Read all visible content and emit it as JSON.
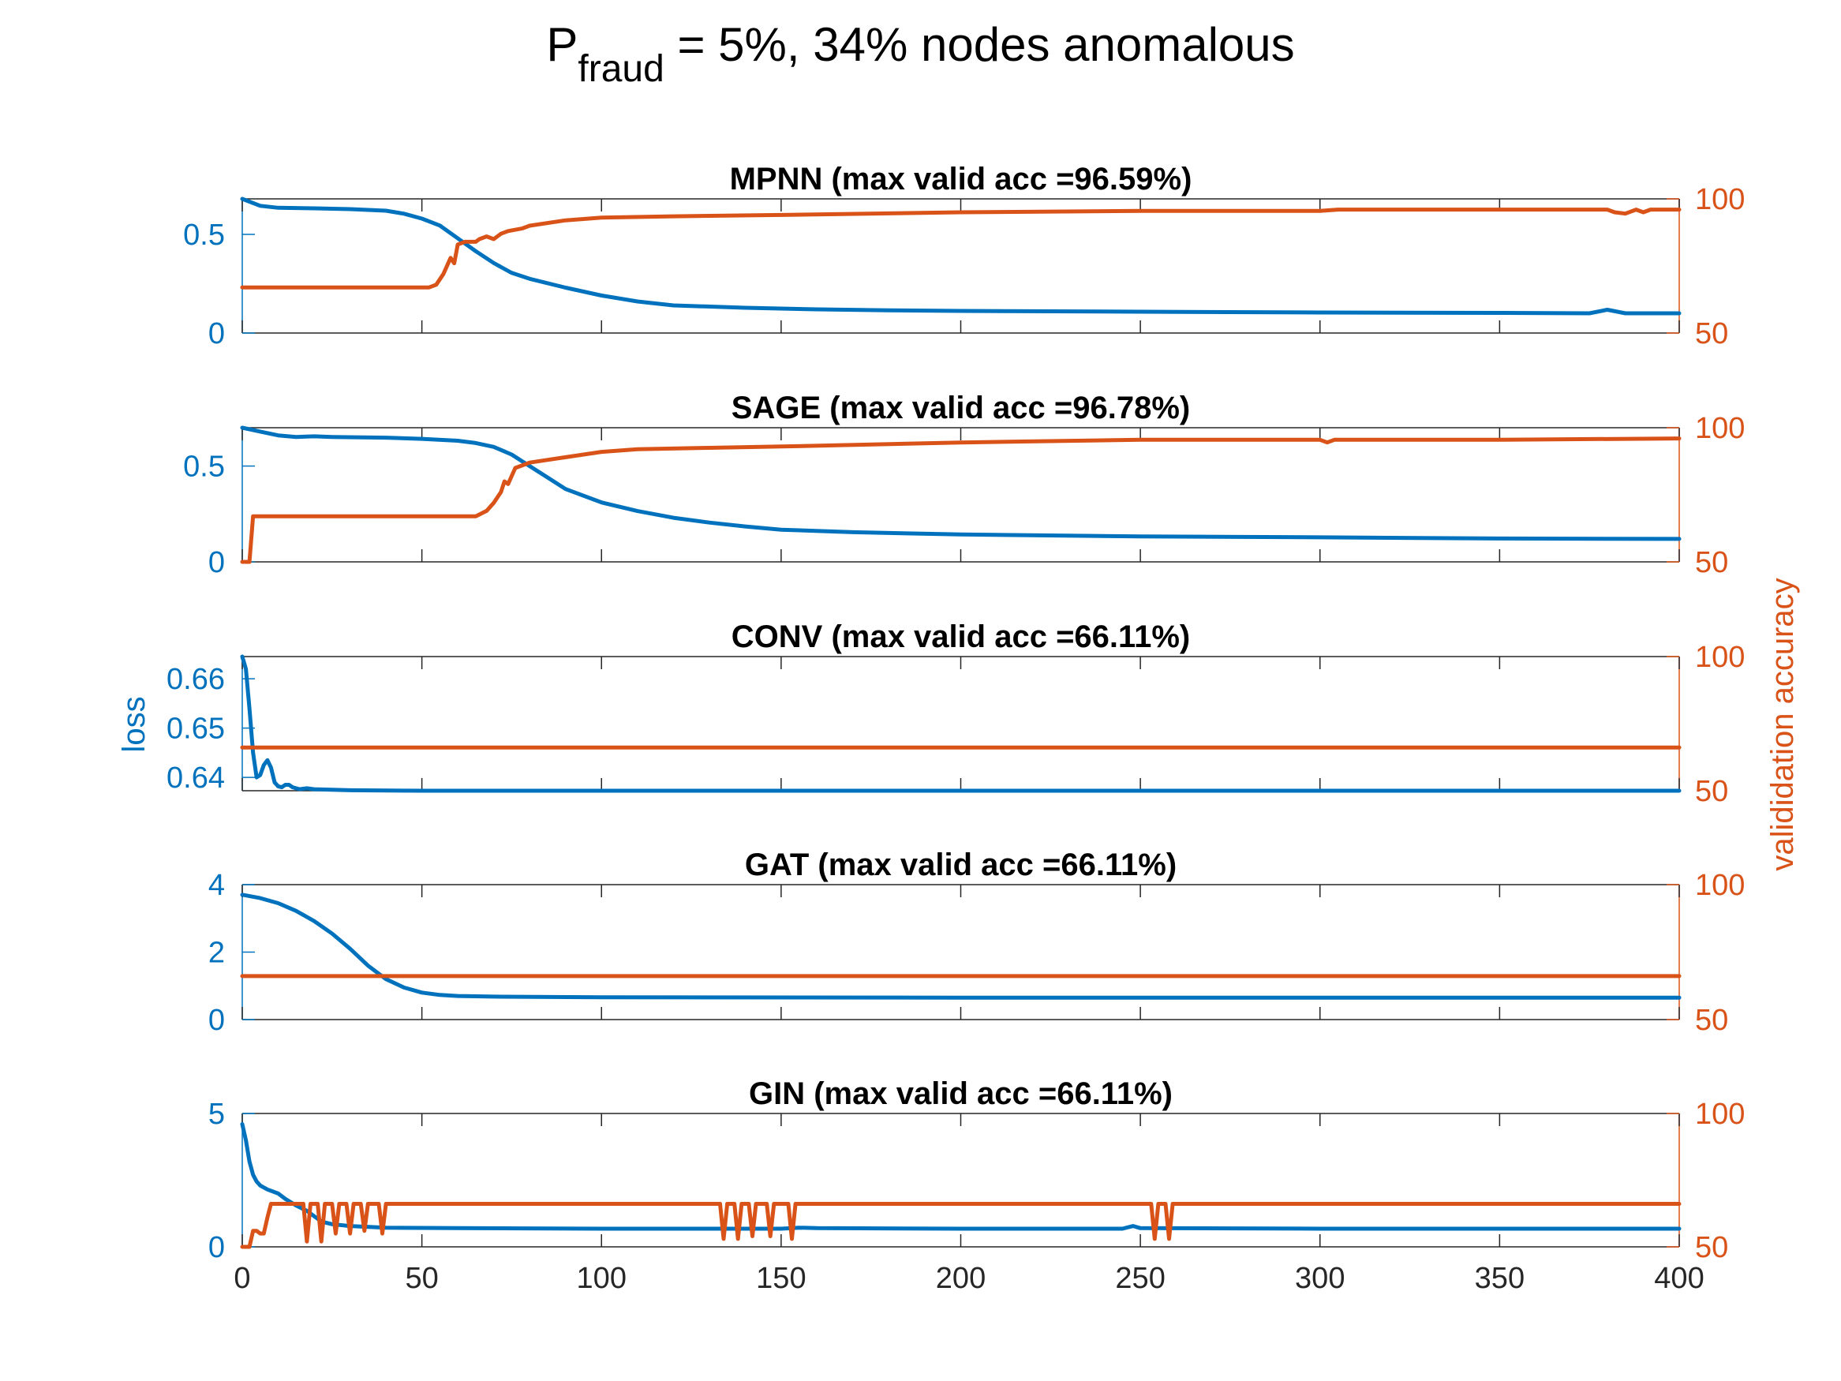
{
  "figure": {
    "title_prefix": "P",
    "title_subscript": "fraud",
    "title_rest": " = 5%, 34% nodes anomalous",
    "left_axis_label": "loss",
    "right_axis_label": "valididation accuracy",
    "colors": {
      "loss": "#0072BD",
      "accuracy": "#D95319",
      "axes": "#262626"
    }
  },
  "chart_data": [
    {
      "type": "line",
      "title": "MPNN (max valid acc =96.59%)",
      "xlim": [
        0,
        400
      ],
      "xticks": [
        0,
        50,
        100,
        150,
        200,
        250,
        300,
        350,
        400
      ],
      "ylim_left": [
        0,
        0.68
      ],
      "yticks_left": [
        0,
        0.5
      ],
      "ytick_labels_left": [
        "0",
        "0.5"
      ],
      "ylim_right": [
        50,
        100
      ],
      "yticks_right": [
        50,
        100
      ],
      "ytick_labels_right": [
        "50",
        "100"
      ],
      "series": [
        {
          "axis": "left",
          "points": [
            [
              0,
              0.68
            ],
            [
              5,
              0.645
            ],
            [
              10,
              0.635
            ],
            [
              20,
              0.632
            ],
            [
              30,
              0.628
            ],
            [
              40,
              0.62
            ],
            [
              45,
              0.605
            ],
            [
              50,
              0.58
            ],
            [
              55,
              0.545
            ],
            [
              60,
              0.48
            ],
            [
              65,
              0.415
            ],
            [
              70,
              0.355
            ],
            [
              75,
              0.305
            ],
            [
              80,
              0.275
            ],
            [
              90,
              0.23
            ],
            [
              100,
              0.19
            ],
            [
              110,
              0.16
            ],
            [
              120,
              0.14
            ],
            [
              140,
              0.128
            ],
            [
              160,
              0.12
            ],
            [
              180,
              0.115
            ],
            [
              200,
              0.112
            ],
            [
              250,
              0.108
            ],
            [
              300,
              0.104
            ],
            [
              350,
              0.102
            ],
            [
              375,
              0.1
            ],
            [
              380,
              0.118
            ],
            [
              385,
              0.1
            ],
            [
              400,
              0.1
            ]
          ]
        },
        {
          "axis": "right",
          "points": [
            [
              0,
              67
            ],
            [
              52,
              67
            ],
            [
              54,
              68
            ],
            [
              56,
              72
            ],
            [
              58,
              78
            ],
            [
              59,
              76
            ],
            [
              60,
              83
            ],
            [
              62,
              84
            ],
            [
              65,
              84
            ],
            [
              66,
              85
            ],
            [
              68,
              86
            ],
            [
              70,
              85
            ],
            [
              72,
              87
            ],
            [
              74,
              88
            ],
            [
              78,
              89
            ],
            [
              80,
              90
            ],
            [
              90,
              92
            ],
            [
              100,
              93
            ],
            [
              120,
              93.5
            ],
            [
              150,
              94
            ],
            [
              200,
              95
            ],
            [
              250,
              95.5
            ],
            [
              300,
              95.5
            ],
            [
              305,
              96
            ],
            [
              350,
              96
            ],
            [
              380,
              96
            ],
            [
              382,
              95
            ],
            [
              385,
              94.5
            ],
            [
              388,
              96
            ],
            [
              390,
              95
            ],
            [
              392,
              96
            ],
            [
              400,
              96
            ]
          ]
        }
      ]
    },
    {
      "type": "line",
      "title": "SAGE (max valid acc =96.78%)",
      "xlim": [
        0,
        400
      ],
      "xticks": [
        0,
        50,
        100,
        150,
        200,
        250,
        300,
        350,
        400
      ],
      "ylim_left": [
        0,
        0.7
      ],
      "yticks_left": [
        0,
        0.5
      ],
      "ytick_labels_left": [
        "0",
        "0.5"
      ],
      "ylim_right": [
        50,
        100
      ],
      "yticks_right": [
        50,
        100
      ],
      "ytick_labels_right": [
        "50",
        "100"
      ],
      "series": [
        {
          "axis": "left",
          "points": [
            [
              0,
              0.7
            ],
            [
              5,
              0.68
            ],
            [
              10,
              0.66
            ],
            [
              15,
              0.652
            ],
            [
              20,
              0.655
            ],
            [
              25,
              0.652
            ],
            [
              40,
              0.648
            ],
            [
              50,
              0.642
            ],
            [
              60,
              0.632
            ],
            [
              65,
              0.62
            ],
            [
              70,
              0.6
            ],
            [
              75,
              0.56
            ],
            [
              80,
              0.5
            ],
            [
              85,
              0.44
            ],
            [
              90,
              0.38
            ],
            [
              100,
              0.31
            ],
            [
              110,
              0.265
            ],
            [
              120,
              0.23
            ],
            [
              130,
              0.205
            ],
            [
              140,
              0.185
            ],
            [
              150,
              0.168
            ],
            [
              170,
              0.155
            ],
            [
              200,
              0.143
            ],
            [
              250,
              0.133
            ],
            [
              300,
              0.128
            ],
            [
              350,
              0.122
            ],
            [
              400,
              0.12
            ]
          ]
        },
        {
          "axis": "right",
          "points": [
            [
              0,
              50
            ],
            [
              1,
              50
            ],
            [
              2,
              50
            ],
            [
              3,
              67
            ],
            [
              60,
              67
            ],
            [
              65,
              67
            ],
            [
              68,
              69
            ],
            [
              70,
              72
            ],
            [
              72,
              76
            ],
            [
              73,
              80
            ],
            [
              74,
              79
            ],
            [
              75,
              82
            ],
            [
              76,
              85
            ],
            [
              78,
              86
            ],
            [
              80,
              87
            ],
            [
              90,
              89
            ],
            [
              100,
              91
            ],
            [
              110,
              92
            ],
            [
              130,
              92.5
            ],
            [
              150,
              93
            ],
            [
              200,
              94.5
            ],
            [
              250,
              95.5
            ],
            [
              300,
              95.5
            ],
            [
              302,
              94.5
            ],
            [
              304,
              95.5
            ],
            [
              350,
              95.5
            ],
            [
              400,
              96
            ]
          ]
        }
      ]
    },
    {
      "type": "line",
      "title": "CONV (max valid acc =66.11%)",
      "xlim": [
        0,
        400
      ],
      "xticks": [
        0,
        50,
        100,
        150,
        200,
        250,
        300,
        350,
        400
      ],
      "ylim_left": [
        0.6373,
        0.6645
      ],
      "yticks_left": [
        0.64,
        0.65,
        0.66
      ],
      "ytick_labels_left": [
        "0.64",
        "0.65",
        "0.66"
      ],
      "ylim_right": [
        50,
        100
      ],
      "yticks_right": [
        50,
        100
      ],
      "ytick_labels_right": [
        "50",
        "100"
      ],
      "series": [
        {
          "axis": "left",
          "points": [
            [
              0,
              0.6645
            ],
            [
              1,
              0.662
            ],
            [
              2,
              0.654
            ],
            [
              3,
              0.645
            ],
            [
              4,
              0.64
            ],
            [
              5,
              0.6405
            ],
            [
              6,
              0.6425
            ],
            [
              7,
              0.6435
            ],
            [
              8,
              0.642
            ],
            [
              9,
              0.639
            ],
            [
              10,
              0.6382
            ],
            [
              11,
              0.638
            ],
            [
              12,
              0.6385
            ],
            [
              13,
              0.6385
            ],
            [
              14,
              0.638
            ],
            [
              16,
              0.6376
            ],
            [
              18,
              0.6378
            ],
            [
              20,
              0.6376
            ],
            [
              25,
              0.6375
            ],
            [
              30,
              0.6374
            ],
            [
              50,
              0.6373
            ],
            [
              400,
              0.6373
            ]
          ]
        },
        {
          "axis": "right",
          "points": [
            [
              0,
              66.11
            ],
            [
              400,
              66.11
            ]
          ]
        }
      ]
    },
    {
      "type": "line",
      "title": "GAT (max valid acc =66.11%)",
      "xlim": [
        0,
        400
      ],
      "xticks": [
        0,
        50,
        100,
        150,
        200,
        250,
        300,
        350,
        400
      ],
      "ylim_left": [
        0,
        4
      ],
      "yticks_left": [
        0,
        2,
        4
      ],
      "ytick_labels_left": [
        "0",
        "2",
        "4"
      ],
      "ylim_right": [
        50,
        100
      ],
      "yticks_right": [
        50,
        100
      ],
      "ytick_labels_right": [
        "50",
        "100"
      ],
      "series": [
        {
          "axis": "left",
          "points": [
            [
              0,
              3.7
            ],
            [
              5,
              3.6
            ],
            [
              10,
              3.45
            ],
            [
              15,
              3.22
            ],
            [
              20,
              2.92
            ],
            [
              25,
              2.55
            ],
            [
              30,
              2.1
            ],
            [
              35,
              1.6
            ],
            [
              40,
              1.2
            ],
            [
              45,
              0.95
            ],
            [
              50,
              0.8
            ],
            [
              55,
              0.73
            ],
            [
              60,
              0.7
            ],
            [
              70,
              0.68
            ],
            [
              100,
              0.66
            ],
            [
              200,
              0.65
            ],
            [
              300,
              0.65
            ],
            [
              400,
              0.65
            ]
          ]
        },
        {
          "axis": "right",
          "points": [
            [
              0,
              66.11
            ],
            [
              400,
              66.11
            ]
          ]
        }
      ]
    },
    {
      "type": "line",
      "title": "GIN (max valid acc =66.11%)",
      "xlim": [
        0,
        400
      ],
      "xticks": [
        0,
        50,
        100,
        150,
        200,
        250,
        300,
        350,
        400
      ],
      "ylim_left": [
        0,
        5
      ],
      "yticks_left": [
        0,
        5
      ],
      "ytick_labels_left": [
        "0",
        "5"
      ],
      "ylim_right": [
        50,
        100
      ],
      "yticks_right": [
        50,
        100
      ],
      "ytick_labels_right": [
        "50",
        "100"
      ],
      "series": [
        {
          "axis": "left",
          "points": [
            [
              0,
              4.6
            ],
            [
              1,
              4.0
            ],
            [
              2,
              3.2
            ],
            [
              3,
              2.7
            ],
            [
              4,
              2.45
            ],
            [
              5,
              2.3
            ],
            [
              7,
              2.15
            ],
            [
              10,
              2.0
            ],
            [
              12,
              1.8
            ],
            [
              15,
              1.55
            ],
            [
              18,
              1.35
            ],
            [
              20,
              1.15
            ],
            [
              22,
              0.95
            ],
            [
              25,
              0.85
            ],
            [
              30,
              0.78
            ],
            [
              40,
              0.72
            ],
            [
              60,
              0.7
            ],
            [
              100,
              0.68
            ],
            [
              150,
              0.68
            ],
            [
              155,
              0.72
            ],
            [
              160,
              0.7
            ],
            [
              200,
              0.68
            ],
            [
              245,
              0.68
            ],
            [
              248,
              0.78
            ],
            [
              250,
              0.7
            ],
            [
              300,
              0.68
            ],
            [
              400,
              0.68
            ]
          ]
        },
        {
          "axis": "right",
          "points": [
            [
              0,
              50
            ],
            [
              2,
              50
            ],
            [
              3,
              56
            ],
            [
              4,
              56
            ],
            [
              5,
              55
            ],
            [
              6,
              55
            ],
            [
              7,
              61
            ],
            [
              8,
              66.11
            ],
            [
              17,
              66.11
            ],
            [
              18,
              52
            ],
            [
              19,
              66.11
            ],
            [
              21,
              66.11
            ],
            [
              22,
              52
            ],
            [
              23,
              66.11
            ],
            [
              25,
              66.11
            ],
            [
              26,
              55
            ],
            [
              27,
              66.11
            ],
            [
              29,
              66.11
            ],
            [
              30,
              55
            ],
            [
              31,
              66.11
            ],
            [
              33,
              66.11
            ],
            [
              34,
              56
            ],
            [
              35,
              66.11
            ],
            [
              38,
              66.11
            ],
            [
              39,
              55
            ],
            [
              40,
              66.11
            ],
            [
              133,
              66.11
            ],
            [
              134,
              53
            ],
            [
              135,
              66.11
            ],
            [
              137,
              66.11
            ],
            [
              138,
              53
            ],
            [
              139,
              66.11
            ],
            [
              141,
              66.11
            ],
            [
              142,
              54
            ],
            [
              143,
              66.11
            ],
            [
              146,
              66.11
            ],
            [
              147,
              54
            ],
            [
              148,
              66.11
            ],
            [
              152,
              66.11
            ],
            [
              153,
              53
            ],
            [
              154,
              66.11
            ],
            [
              253,
              66.11
            ],
            [
              254,
              53
            ],
            [
              255,
              66.11
            ],
            [
              257,
              66.11
            ],
            [
              258,
              53
            ],
            [
              259,
              66.11
            ],
            [
              400,
              66.11
            ]
          ]
        }
      ]
    }
  ]
}
